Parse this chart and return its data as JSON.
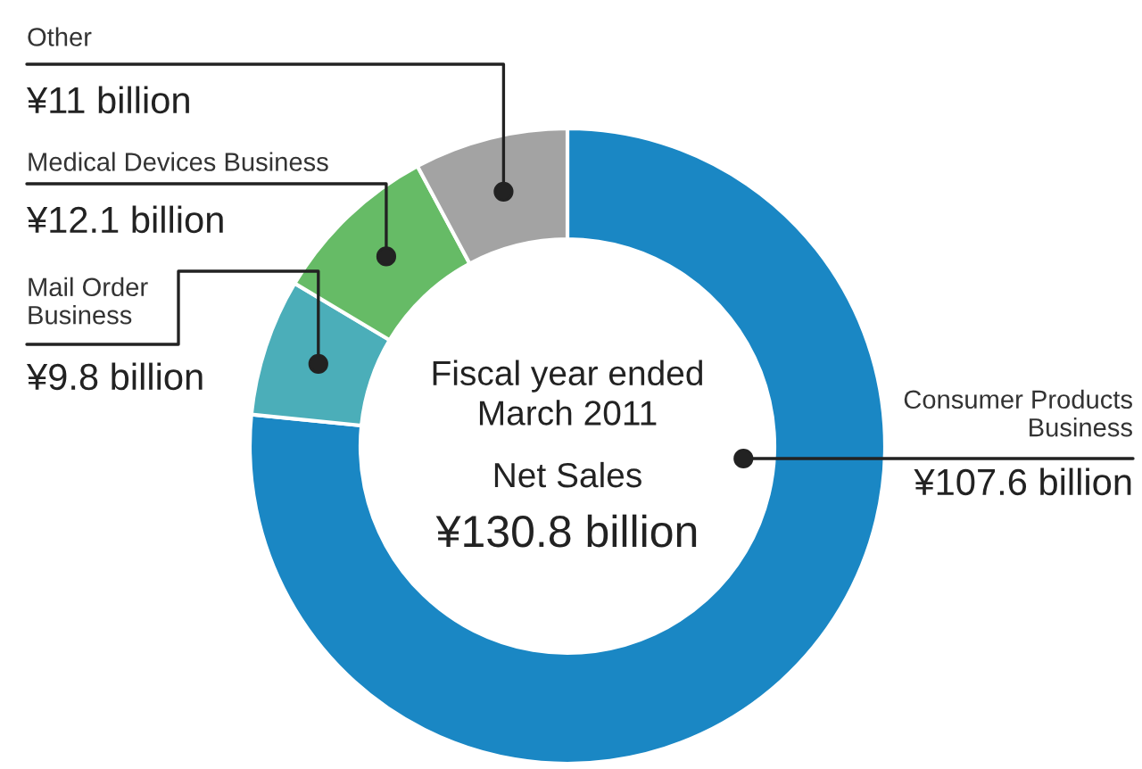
{
  "chart_data": {
    "type": "donut",
    "categories": [
      "Consumer Products\nBusiness",
      "Mail Order\nBusiness",
      "Medical Devices Business",
      "Other"
    ],
    "values": [
      107.6,
      9.8,
      12.1,
      11
    ],
    "value_labels": [
      "¥107.6 billion",
      "¥9.8 billion",
      "¥12.1 billion",
      "¥11 billion"
    ],
    "colors": [
      "#1a87c4",
      "#4baeb9",
      "#66bb66",
      "#a3a3a3"
    ],
    "annotations": [
      "Fiscal year ended\nMarch 2011",
      "Net Sales",
      "¥130.8 billion"
    ]
  }
}
